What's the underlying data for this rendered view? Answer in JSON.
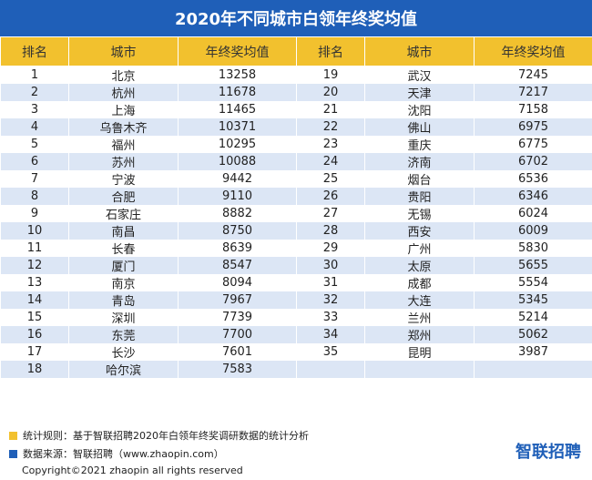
{
  "chart_data": {
    "type": "table",
    "title": "2020年不同城市白领年终奖均值",
    "columns": [
      "排名",
      "城市",
      "年终奖均值",
      "排名",
      "城市",
      "年终奖均值"
    ],
    "left_rows": [
      {
        "rank": "1",
        "city": "北京",
        "value": "13258"
      },
      {
        "rank": "2",
        "city": "杭州",
        "value": "11678"
      },
      {
        "rank": "3",
        "city": "上海",
        "value": "11465"
      },
      {
        "rank": "4",
        "city": "乌鲁木齐",
        "value": "10371"
      },
      {
        "rank": "5",
        "city": "福州",
        "value": "10295"
      },
      {
        "rank": "6",
        "city": "苏州",
        "value": "10088"
      },
      {
        "rank": "7",
        "city": "宁波",
        "value": "9442"
      },
      {
        "rank": "8",
        "city": "合肥",
        "value": "9110"
      },
      {
        "rank": "9",
        "city": "石家庄",
        "value": "8882"
      },
      {
        "rank": "10",
        "city": "南昌",
        "value": "8750"
      },
      {
        "rank": "11",
        "city": "长春",
        "value": "8639"
      },
      {
        "rank": "12",
        "city": "厦门",
        "value": "8547"
      },
      {
        "rank": "13",
        "city": "南京",
        "value": "8094"
      },
      {
        "rank": "14",
        "city": "青岛",
        "value": "7967"
      },
      {
        "rank": "15",
        "city": "深圳",
        "value": "7739"
      },
      {
        "rank": "16",
        "city": "东莞",
        "value": "7700"
      },
      {
        "rank": "17",
        "city": "长沙",
        "value": "7601"
      },
      {
        "rank": "18",
        "city": "哈尔滨",
        "value": "7583"
      }
    ],
    "right_rows": [
      {
        "rank": "19",
        "city": "武汉",
        "value": "7245"
      },
      {
        "rank": "20",
        "city": "天津",
        "value": "7217"
      },
      {
        "rank": "21",
        "city": "沈阳",
        "value": "7158"
      },
      {
        "rank": "22",
        "city": "佛山",
        "value": "6975"
      },
      {
        "rank": "23",
        "city": "重庆",
        "value": "6775"
      },
      {
        "rank": "24",
        "city": "济南",
        "value": "6702"
      },
      {
        "rank": "25",
        "city": "烟台",
        "value": "6536"
      },
      {
        "rank": "26",
        "city": "贵阳",
        "value": "6346"
      },
      {
        "rank": "27",
        "city": "无锡",
        "value": "6024"
      },
      {
        "rank": "28",
        "city": "西安",
        "value": "6009"
      },
      {
        "rank": "29",
        "city": "广州",
        "value": "5830"
      },
      {
        "rank": "30",
        "city": "太原",
        "value": "5655"
      },
      {
        "rank": "31",
        "city": "成都",
        "value": "5554"
      },
      {
        "rank": "32",
        "city": "大连",
        "value": "5345"
      },
      {
        "rank": "33",
        "city": "兰州",
        "value": "5214"
      },
      {
        "rank": "34",
        "city": "郑州",
        "value": "5062"
      },
      {
        "rank": "35",
        "city": "昆明",
        "value": "3987"
      }
    ]
  },
  "footer": {
    "note1": "统计规则：基于智联招聘2020年白领年终奖调研数据的统计分析",
    "note2": "数据来源：智联招聘（www.zhaopin.com）",
    "logo_text": "智联招聘",
    "copyright": "Copyright©2021 zhaopin all rights reserved"
  },
  "colors": {
    "title_bg": "#1f5fb8",
    "header_bg": "#f2c12e",
    "stripe": "#dce6f5",
    "note1_swatch": "#f2c12e",
    "note2_swatch": "#1f5fb8"
  }
}
